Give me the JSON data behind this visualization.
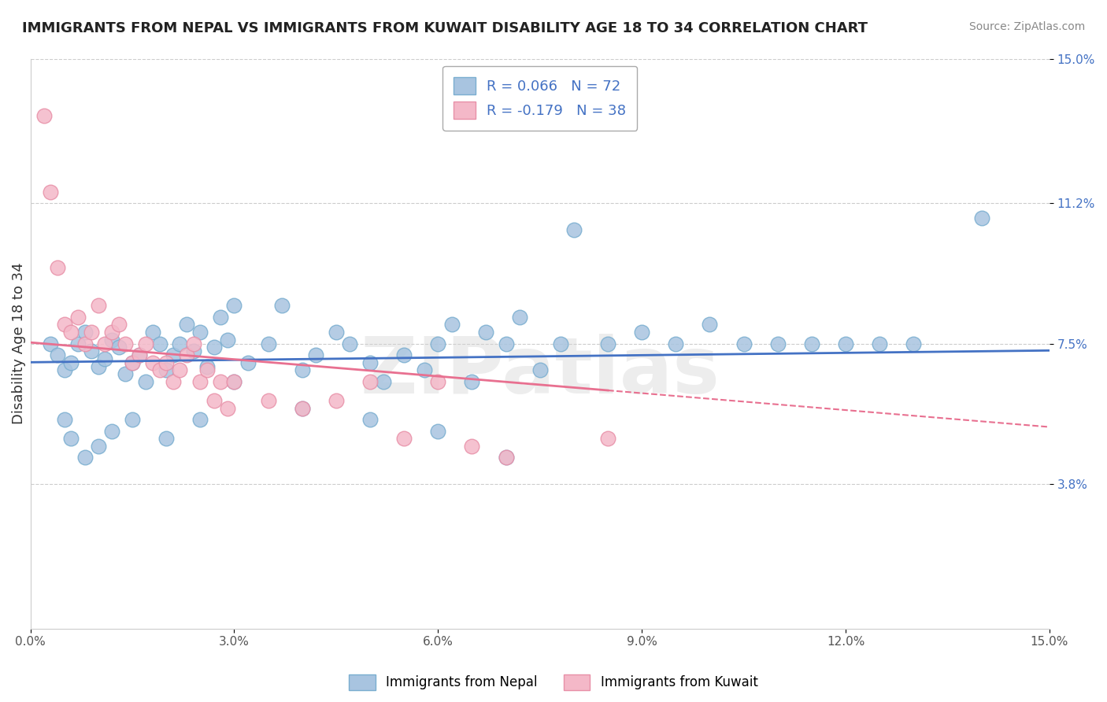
{
  "title": "IMMIGRANTS FROM NEPAL VS IMMIGRANTS FROM KUWAIT DISABILITY AGE 18 TO 34 CORRELATION CHART",
  "source": "Source: ZipAtlas.com",
  "xlabel": "",
  "ylabel": "Disability Age 18 to 34",
  "xlim": [
    0.0,
    15.0
  ],
  "ylim": [
    0.0,
    15.0
  ],
  "xticks": [
    0.0,
    3.0,
    6.0,
    9.0,
    12.0,
    15.0
  ],
  "yticks": [
    3.8,
    7.5,
    11.2,
    15.0
  ],
  "xtick_labels": [
    "0.0%",
    "3.0%",
    "6.0%",
    "9.0%",
    "12.0%",
    "15.0%"
  ],
  "ytick_labels": [
    "3.8%",
    "7.5%",
    "11.2%",
    "15.0%"
  ],
  "watermark": "ZIPatlas",
  "nepal_color": "#a8c4e0",
  "kuwait_color": "#f4b8c8",
  "nepal_edge": "#7aaed0",
  "kuwait_edge": "#e890a8",
  "nepal_R": 0.066,
  "nepal_N": 72,
  "kuwait_R": -0.179,
  "kuwait_N": 38,
  "nepal_line_color": "#4472c4",
  "kuwait_line_color": "#e87090",
  "nepal_x": [
    0.3,
    0.4,
    0.5,
    0.6,
    0.7,
    0.8,
    0.9,
    1.0,
    1.1,
    1.2,
    1.3,
    1.4,
    1.5,
    1.6,
    1.7,
    1.8,
    1.9,
    2.0,
    2.1,
    2.2,
    2.3,
    2.4,
    2.5,
    2.6,
    2.7,
    2.8,
    2.9,
    3.0,
    3.2,
    3.5,
    3.7,
    4.0,
    4.2,
    4.5,
    4.7,
    5.0,
    5.2,
    5.5,
    5.8,
    6.0,
    6.2,
    6.5,
    6.7,
    7.0,
    7.2,
    7.5,
    7.8,
    8.0,
    8.5,
    9.0,
    9.5,
    10.0,
    10.5,
    11.0,
    11.5,
    12.0,
    12.5,
    13.0,
    0.5,
    0.6,
    0.8,
    1.0,
    1.2,
    1.5,
    2.0,
    2.5,
    3.0,
    4.0,
    5.0,
    6.0,
    7.0,
    14.0
  ],
  "nepal_y": [
    7.5,
    7.2,
    6.8,
    7.0,
    7.5,
    7.8,
    7.3,
    6.9,
    7.1,
    7.6,
    7.4,
    6.7,
    7.0,
    7.2,
    6.5,
    7.8,
    7.5,
    6.8,
    7.2,
    7.5,
    8.0,
    7.3,
    7.8,
    6.9,
    7.4,
    8.2,
    7.6,
    8.5,
    7.0,
    7.5,
    8.5,
    6.8,
    7.2,
    7.8,
    7.5,
    7.0,
    6.5,
    7.2,
    6.8,
    7.5,
    8.0,
    6.5,
    7.8,
    7.5,
    8.2,
    6.8,
    7.5,
    10.5,
    7.5,
    7.8,
    7.5,
    8.0,
    7.5,
    7.5,
    7.5,
    7.5,
    7.5,
    7.5,
    5.5,
    5.0,
    4.5,
    4.8,
    5.2,
    5.5,
    5.0,
    5.5,
    6.5,
    5.8,
    5.5,
    5.2,
    4.5,
    10.8
  ],
  "kuwait_x": [
    0.2,
    0.3,
    0.4,
    0.5,
    0.6,
    0.7,
    0.8,
    0.9,
    1.0,
    1.1,
    1.2,
    1.3,
    1.4,
    1.5,
    1.6,
    1.7,
    1.8,
    1.9,
    2.0,
    2.1,
    2.2,
    2.3,
    2.4,
    2.5,
    2.6,
    2.7,
    2.8,
    2.9,
    3.0,
    3.5,
    4.0,
    4.5,
    5.0,
    5.5,
    6.0,
    6.5,
    7.0,
    8.5
  ],
  "kuwait_y": [
    13.5,
    11.5,
    9.5,
    8.0,
    7.8,
    8.2,
    7.5,
    7.8,
    8.5,
    7.5,
    7.8,
    8.0,
    7.5,
    7.0,
    7.2,
    7.5,
    7.0,
    6.8,
    7.0,
    6.5,
    6.8,
    7.2,
    7.5,
    6.5,
    6.8,
    6.0,
    6.5,
    5.8,
    6.5,
    6.0,
    5.8,
    6.0,
    6.5,
    5.0,
    6.5,
    4.8,
    4.5,
    5.0
  ]
}
